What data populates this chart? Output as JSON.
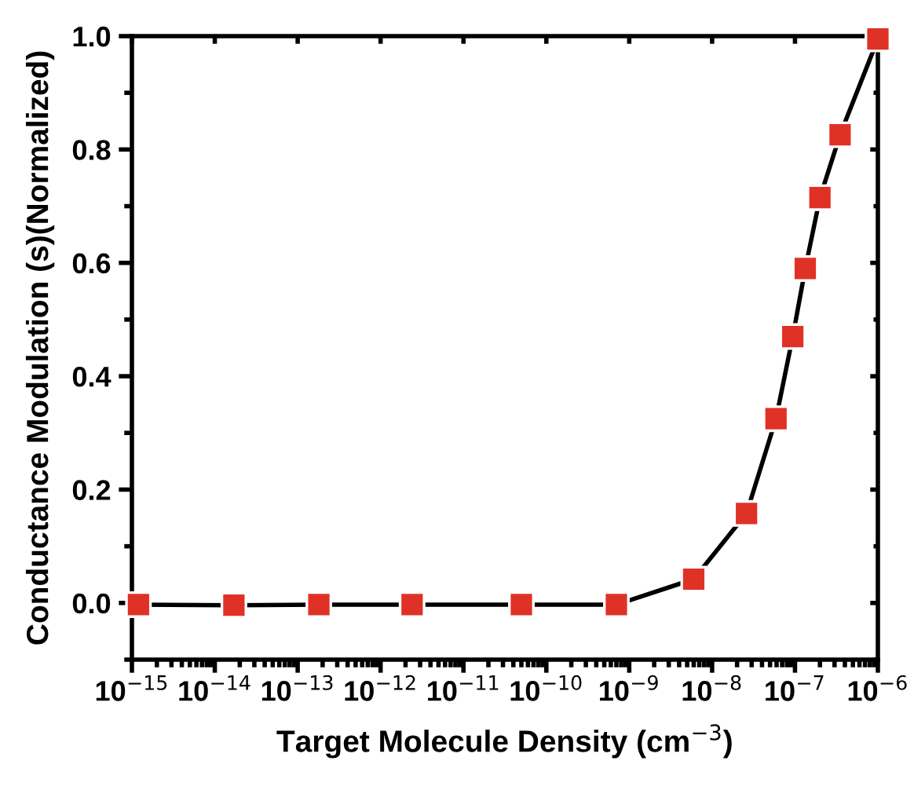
{
  "chart_data": {
    "type": "line",
    "xlabel": "Target Molecule Density (cm$^{−3}$)",
    "ylabel": "Conductance Modulation (s)(Normalized)",
    "x": [
      1.2e-15,
      1.7e-14,
      1.8e-13,
      2.4e-12,
      5e-11,
      7e-10,
      6e-09,
      2.6e-08,
      5.9e-08,
      9.4e-08,
      1.33e-07,
      2e-07,
      3.5e-07,
      1e-06
    ],
    "series": [
      {
        "color": "#e03127",
        "values": [
          -0.003,
          -0.004,
          -0.003,
          -0.003,
          -0.003,
          -0.003,
          0.042,
          0.158,
          0.325,
          0.47,
          0.59,
          0.715,
          0.826,
          0.995
        ]
      }
    ],
    "log": "x",
    "xlim": [
      1e-15,
      1e-06
    ],
    "xticks": [
      {
        "value": 1e-15,
        "label": "10$^{−15}$"
      },
      {
        "value": 1e-14,
        "label": "10$^{−14}$"
      },
      {
        "value": 1e-13,
        "label": "10$^{−13}$"
      },
      {
        "value": 1e-12,
        "label": "10$^{−12}$"
      },
      {
        "value": 1e-11,
        "label": "10$^{−11}$"
      },
      {
        "value": 1e-10,
        "label": "10$^{−10}$"
      },
      {
        "value": 1e-09,
        "label": "10$^{−9}$"
      },
      {
        "value": 1e-08,
        "label": "10$^{−8}$"
      },
      {
        "value": 1e-07,
        "label": "10$^{−7}$"
      },
      {
        "value": 1e-06,
        "label": "10$^{−6}$"
      }
    ],
    "ylim": [
      -0.1,
      1.0
    ],
    "yticks": [
      {
        "value": 0.0,
        "label": "0.0"
      },
      0.2,
      0.4,
      0.6,
      0.8,
      {
        "value": 1.0,
        "label": "1.0"
      }
    ],
    "marker": "square",
    "line_style": "solid",
    "grid": false,
    "legend": false
  }
}
